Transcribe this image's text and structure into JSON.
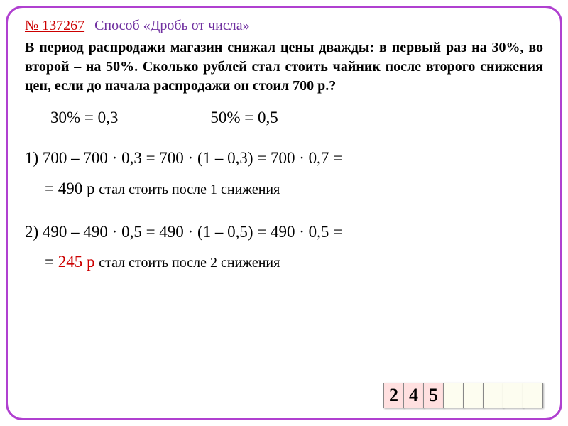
{
  "header": {
    "task_num": "№ 137267",
    "method": "Способ «Дробь от числа»"
  },
  "problem": "В период распродажи магазин снижал цены дважды: в первый раз на 30%, во второй – на 50%. Сколько рублей стал стоить чайник после второго снижения цен, если до начала распродажи он стоил 700 р.?",
  "conversions": {
    "c1": "30% = 0,3",
    "c2": "50% = 0,5"
  },
  "steps": {
    "s1_line": "1) 700 – 700 · 0,3 = 700 · (1 – 0,3) = 700 · 0,7 =",
    "s1_res_prefix": "= ",
    "s1_res_val": "490 р ",
    "s1_res_rest": "стал стоить после 1 снижения",
    "s2_line": "2) 490 – 490 · 0,5 = 490 · (1 – 0,5) = 490 · 0,5 =",
    "s2_res_prefix": "= ",
    "s2_res_val": "245 р ",
    "s2_res_rest": "стал стоить после 2 снижения"
  },
  "answer_cells": [
    "2",
    "4",
    "5",
    "",
    "",
    "",
    "",
    ""
  ],
  "colors": {
    "frame_border": "#b040d0",
    "task_num": "#cc0000",
    "method": "#7030a0",
    "answer": "#cc0000",
    "cell_filled_bg": "#ffe0e0",
    "cell_empty_bg": "#fdfdf0"
  }
}
